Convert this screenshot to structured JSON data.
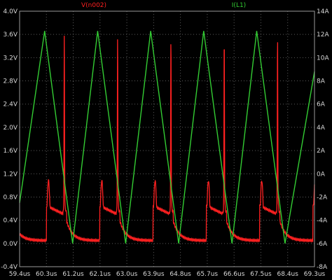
{
  "colors": {
    "background": "#000000",
    "grid": "#5a5a5a",
    "frame": "#9a9a9a",
    "voltage_trace": "#ff2020",
    "current_trace": "#33cc33",
    "tick_text": "#d8d8d8"
  },
  "chart_data": {
    "type": "line",
    "title": "",
    "grid": true,
    "legend_placement": "top",
    "x_axis": {
      "ticks": [
        "59.4us",
        "60.3us",
        "61.2us",
        "62.1us",
        "63.0us",
        "63.9us",
        "64.8us",
        "65.7us",
        "66.6us",
        "67.5us",
        "68.4us",
        "69.3us"
      ],
      "range_us": [
        59.4,
        69.3
      ]
    },
    "y_left": {
      "ticks": [
        "-0.4V",
        "0.0V",
        "0.4V",
        "0.8V",
        "1.2V",
        "1.6V",
        "2.0V",
        "2.4V",
        "2.8V",
        "3.2V",
        "3.6V",
        "4.0V"
      ],
      "range": [
        -0.4,
        4.0
      ],
      "unit": "V"
    },
    "y_right": {
      "ticks": [
        "-8A",
        "-6A",
        "-4A",
        "-2A",
        "0A",
        "2A",
        "4A",
        "6A",
        "8A",
        "10A",
        "12A",
        "14A"
      ],
      "range": [
        -8,
        14
      ],
      "unit": "A"
    },
    "series": [
      {
        "name": "V(n002)",
        "axis": "left",
        "color": "#ff2020",
        "period_us": 1.79,
        "first_edge_us": 60.3,
        "baseline_v": 0.05,
        "spike_peak_v": 3.6,
        "step_level_v": 0.65,
        "step_bump_v": 1.1
      },
      {
        "name": "I(L1)",
        "axis": "right",
        "color": "#33cc33",
        "shape": "triangle",
        "points": [
          {
            "x": 59.4,
            "y": -2.5
          },
          {
            "x": 60.24,
            "y": 12.3
          },
          {
            "x": 61.18,
            "y": -6.0
          },
          {
            "x": 62.02,
            "y": 12.3
          },
          {
            "x": 62.96,
            "y": -6.0
          },
          {
            "x": 63.8,
            "y": 12.3
          },
          {
            "x": 64.74,
            "y": -6.0
          },
          {
            "x": 65.58,
            "y": 12.3
          },
          {
            "x": 66.53,
            "y": -6.0
          },
          {
            "x": 67.36,
            "y": 12.3
          },
          {
            "x": 68.31,
            "y": -6.0
          },
          {
            "x": 69.3,
            "y": 8.8
          }
        ]
      }
    ]
  }
}
